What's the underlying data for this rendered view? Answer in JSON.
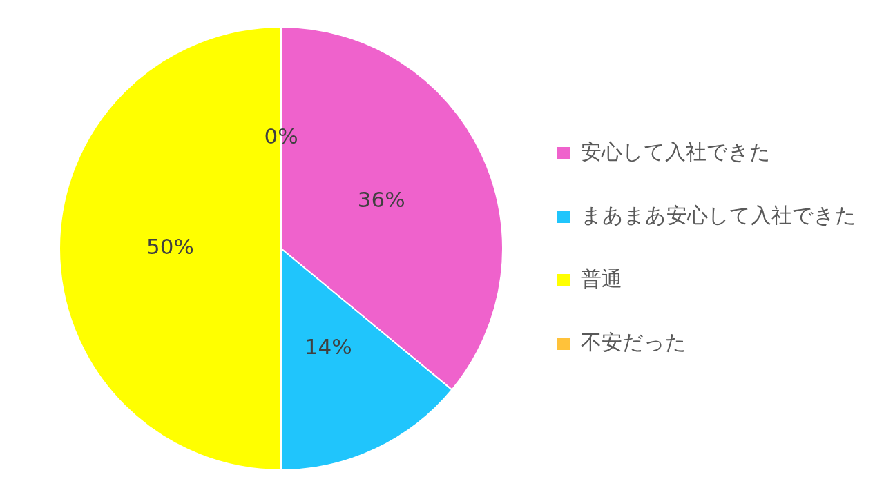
{
  "chart_data": {
    "type": "pie",
    "categories": [
      "安心して入社できた",
      "まあまあ安心して入社できた",
      "普通",
      "不安だった"
    ],
    "values": [
      36,
      14,
      50,
      0
    ],
    "colors": [
      "#ef62cc",
      "#20c5fc",
      "#ffff00",
      "#ffc23a"
    ],
    "value_labels": [
      "36%",
      "14%",
      "50%",
      "0%"
    ],
    "legend": "right"
  }
}
